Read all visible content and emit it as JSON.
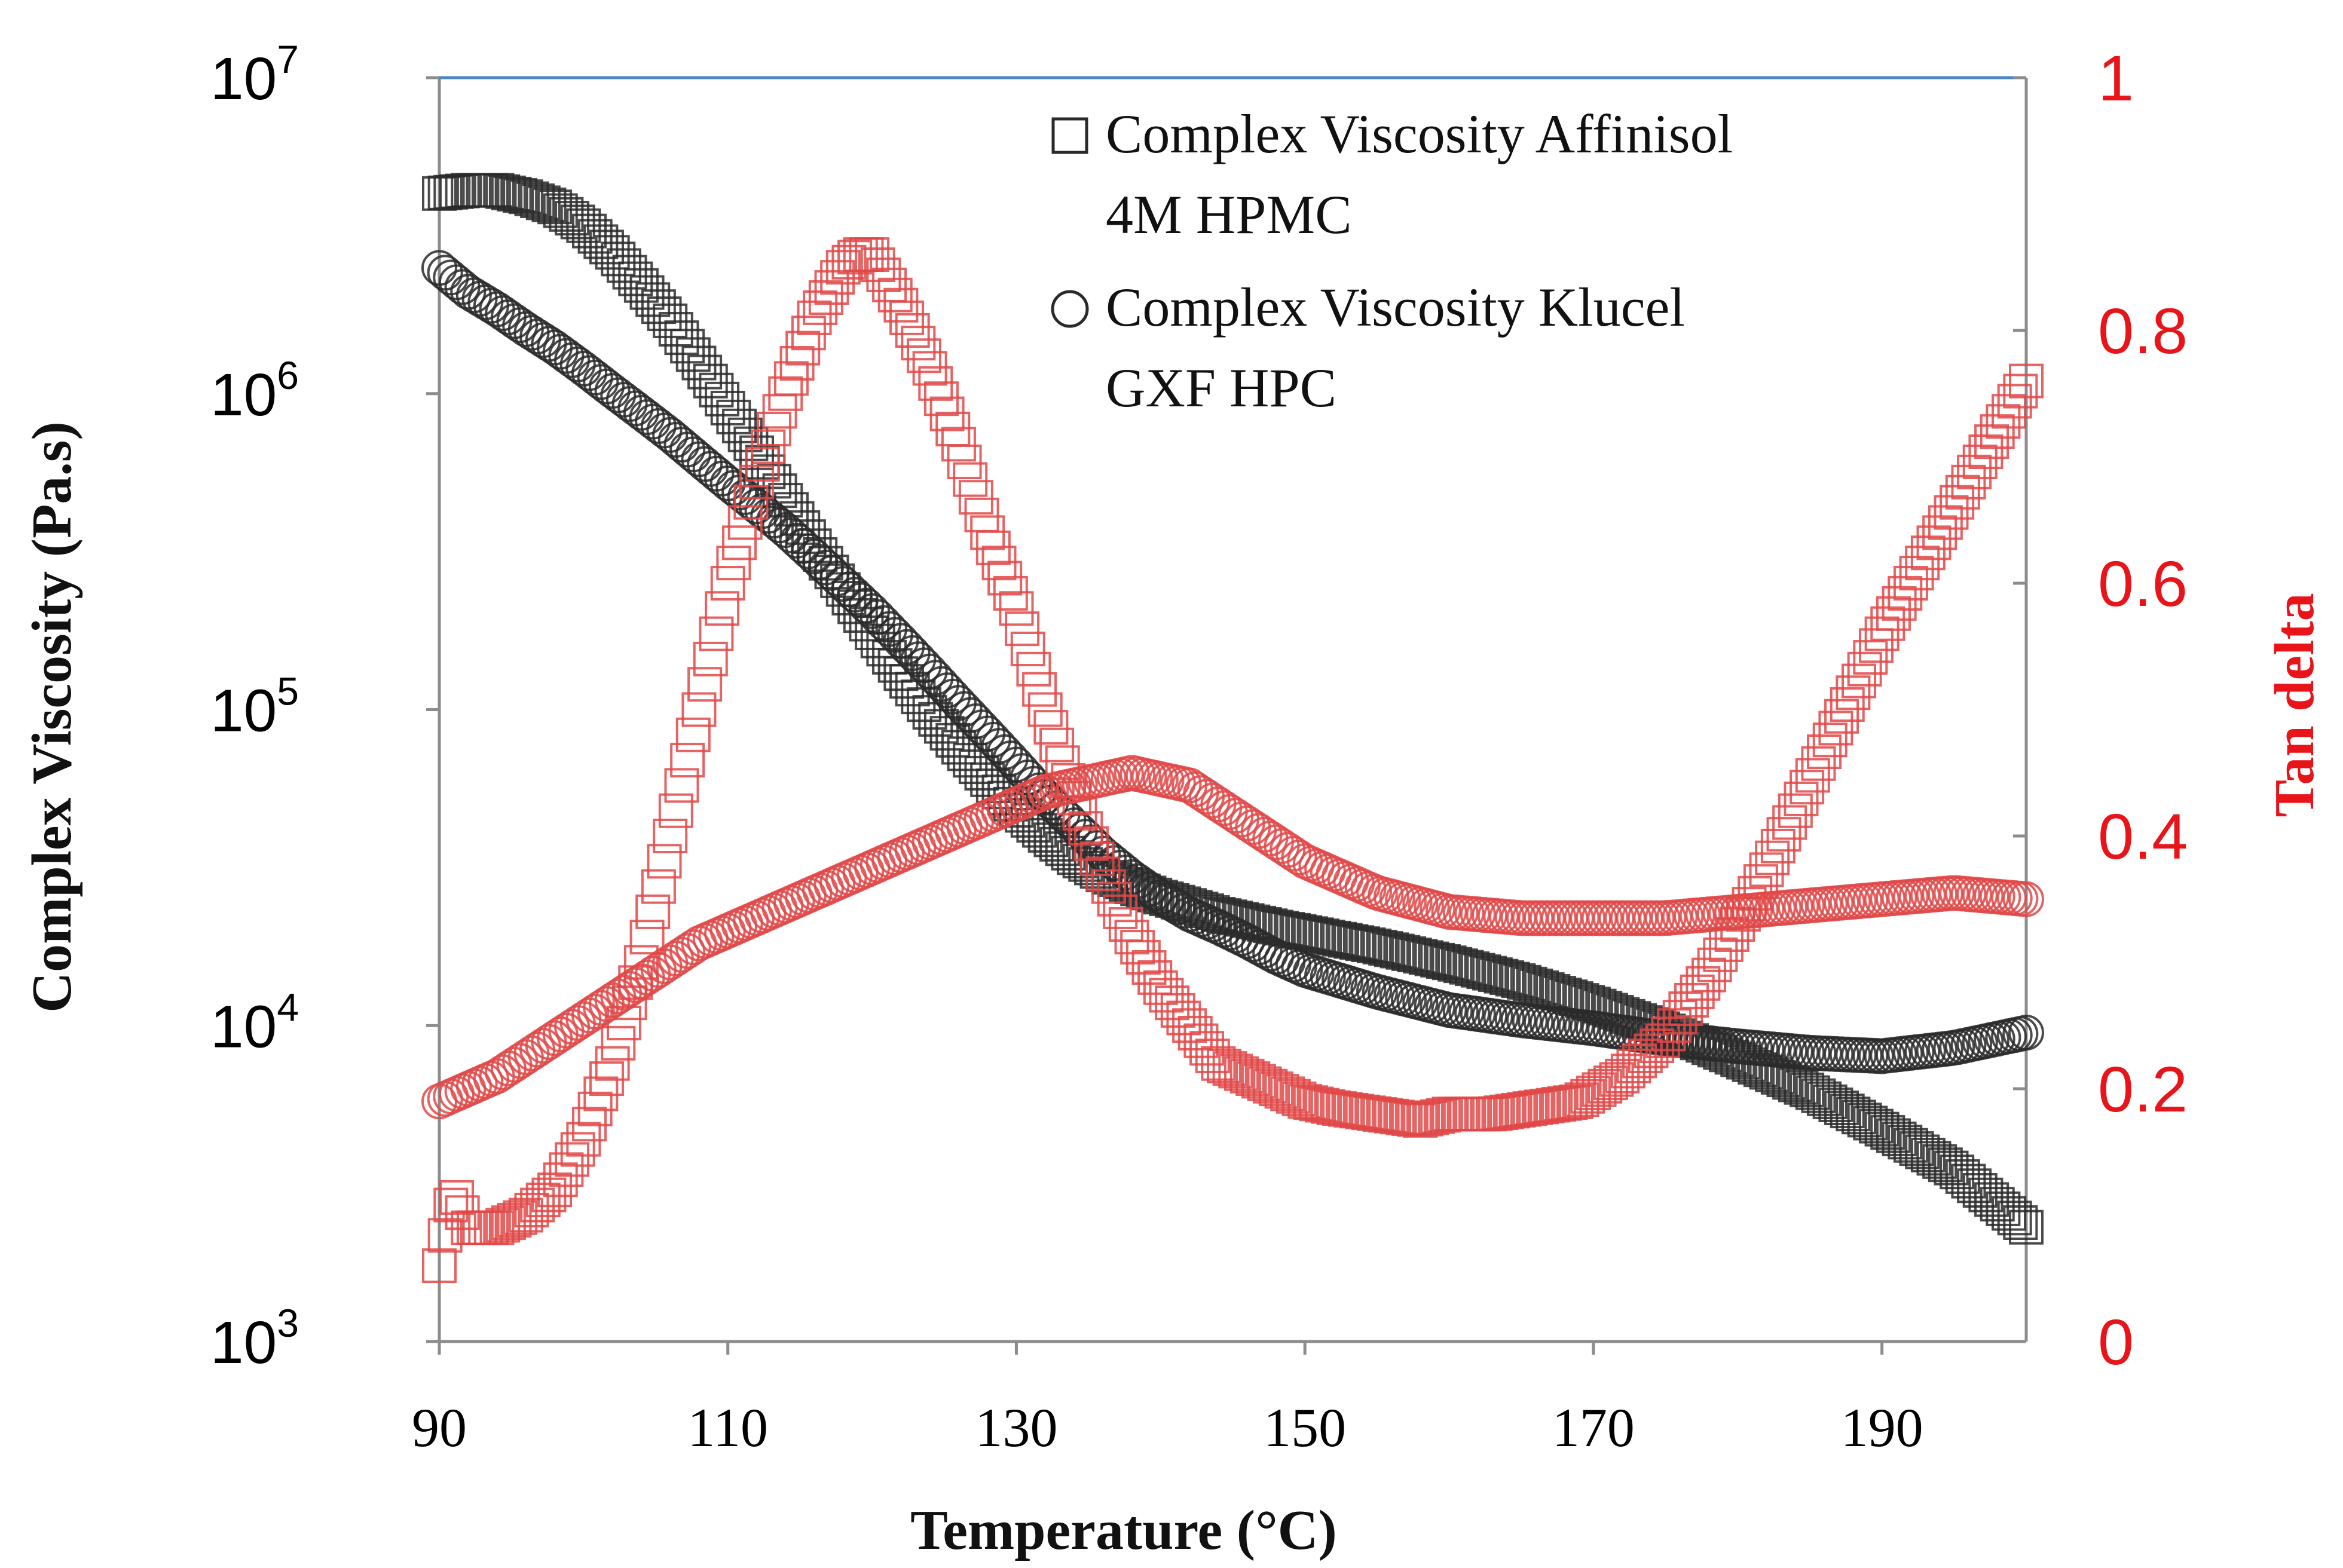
{
  "chart_data": {
    "type": "scatter",
    "xlabel": "Temperature (°C)",
    "ylabel_left": "Complex Viscosity (Pa.s)",
    "ylabel_right": "Tan delta",
    "xlim": [
      90,
      200
    ],
    "x_ticks": [
      90,
      110,
      130,
      150,
      170,
      190
    ],
    "y_left_scale": "log",
    "ylim_left": [
      1000,
      10000000
    ],
    "y_left_ticks": [
      {
        "value": 1000,
        "base": "10",
        "exp": "3"
      },
      {
        "value": 10000,
        "base": "10",
        "exp": "4"
      },
      {
        "value": 100000,
        "base": "10",
        "exp": "5"
      },
      {
        "value": 1000000,
        "base": "10",
        "exp": "6"
      },
      {
        "value": 10000000,
        "base": "10",
        "exp": "7"
      }
    ],
    "ylim_right": [
      0,
      1
    ],
    "y_right_ticks": [
      {
        "value": 0,
        "label": "0"
      },
      {
        "value": 0.2,
        "label": "0.2"
      },
      {
        "value": 0.4,
        "label": "0.4"
      },
      {
        "value": 0.6,
        "label": "0.6"
      },
      {
        "value": 0.8,
        "label": "0.8"
      },
      {
        "value": 1,
        "label": "1"
      }
    ],
    "legend_position": "top-right",
    "legend": [
      {
        "marker": "square",
        "lines": [
          "Complex Viscosity Affinisol",
          "4M HPMC"
        ]
      },
      {
        "marker": "circle",
        "lines": [
          "Complex Viscosity Klucel",
          "GXF HPC"
        ]
      }
    ],
    "colors": {
      "viscosity": "#2a2a2a",
      "tan_delta": "#e04848",
      "right_axis": "#e8141a",
      "top_border": "#4a86c8",
      "axis": "#8c8c8c"
    },
    "series": [
      {
        "id": "visc_hpmc",
        "marker": "square",
        "axis": "left",
        "color": "#2a2a2a",
        "x": [
          90,
          92,
          94,
          96,
          98,
          100,
          102,
          104,
          106,
          108,
          110,
          112,
          114,
          116,
          118,
          120,
          122,
          124,
          126,
          128,
          130,
          132,
          134,
          136,
          138,
          140,
          142,
          144,
          146,
          148,
          150,
          155,
          160,
          165,
          170,
          175,
          180,
          185,
          190,
          195,
          200
        ],
        "y": [
          4300000,
          4400000,
          4400000,
          4200000,
          3900000,
          3400000,
          2800000,
          2200000,
          1700000,
          1250000,
          900000,
          650000,
          460000,
          330000,
          240000,
          175000,
          130000,
          98000,
          76000,
          60000,
          48000,
          40000,
          34000,
          30000,
          27500,
          25500,
          24000,
          22500,
          21500,
          20500,
          19700,
          17800,
          15800,
          13800,
          11700,
          9700,
          7800,
          6200,
          4700,
          3500,
          2300
        ]
      },
      {
        "id": "visc_hpc",
        "marker": "circle",
        "axis": "left",
        "color": "#2a2a2a",
        "x": [
          90,
          92,
          94,
          96,
          98,
          100,
          102,
          104,
          106,
          108,
          110,
          112,
          114,
          116,
          118,
          120,
          122,
          124,
          126,
          128,
          130,
          132,
          134,
          136,
          138,
          140,
          142,
          144,
          146,
          148,
          150,
          155,
          160,
          165,
          170,
          175,
          180,
          185,
          190,
          195,
          200
        ],
        "y": [
          2500000,
          2100000,
          1850000,
          1600000,
          1400000,
          1200000,
          1020000,
          870000,
          740000,
          620000,
          520000,
          440000,
          370000,
          305000,
          250000,
          205000,
          165000,
          132000,
          105000,
          84000,
          67000,
          53000,
          43000,
          35000,
          29500,
          25500,
          22500,
          20500,
          18500,
          16500,
          15000,
          12800,
          11200,
          10400,
          9800,
          9100,
          8600,
          8200,
          8000,
          8500,
          9500
        ]
      },
      {
        "id": "tan_hpmc",
        "marker": "square",
        "axis": "right",
        "color": "#e04848",
        "x": [
          90,
          91,
          92,
          94,
          96,
          98,
          100,
          102,
          104,
          106,
          108,
          110,
          112,
          114,
          116,
          117,
          118,
          119,
          120,
          121,
          122,
          124,
          126,
          128,
          130,
          132,
          134,
          136,
          138,
          140,
          142,
          144,
          146,
          148,
          150,
          152,
          155,
          158,
          160,
          163,
          166,
          169,
          172,
          175,
          178,
          181,
          184,
          187,
          190,
          193,
          196,
          198,
          200
        ],
        "y": [
          0.06,
          0.12,
          0.09,
          0.09,
          0.1,
          0.12,
          0.16,
          0.22,
          0.3,
          0.4,
          0.5,
          0.6,
          0.68,
          0.75,
          0.81,
          0.83,
          0.85,
          0.86,
          0.86,
          0.84,
          0.82,
          0.77,
          0.71,
          0.64,
          0.58,
          0.5,
          0.43,
          0.37,
          0.32,
          0.28,
          0.25,
          0.22,
          0.21,
          0.2,
          0.19,
          0.185,
          0.18,
          0.175,
          0.18,
          0.18,
          0.185,
          0.19,
          0.21,
          0.24,
          0.29,
          0.35,
          0.42,
          0.49,
          0.56,
          0.62,
          0.68,
          0.72,
          0.76
        ]
      },
      {
        "id": "tan_hpc",
        "marker": "circle",
        "axis": "right",
        "color": "#e04848",
        "x": [
          90,
          92,
          94,
          96,
          98,
          100,
          102,
          104,
          106,
          108,
          110,
          112,
          114,
          116,
          118,
          120,
          122,
          124,
          126,
          128,
          130,
          132,
          134,
          136,
          138,
          140,
          142,
          144,
          146,
          148,
          150,
          152,
          155,
          160,
          165,
          170,
          175,
          180,
          185,
          190,
          195,
          200
        ],
        "y": [
          0.19,
          0.2,
          0.21,
          0.225,
          0.24,
          0.255,
          0.27,
          0.285,
          0.3,
          0.315,
          0.325,
          0.335,
          0.345,
          0.355,
          0.365,
          0.375,
          0.385,
          0.395,
          0.405,
          0.415,
          0.425,
          0.435,
          0.44,
          0.445,
          0.45,
          0.445,
          0.44,
          0.425,
          0.41,
          0.395,
          0.38,
          0.37,
          0.355,
          0.34,
          0.335,
          0.335,
          0.335,
          0.34,
          0.345,
          0.35,
          0.355,
          0.35
        ]
      }
    ]
  }
}
